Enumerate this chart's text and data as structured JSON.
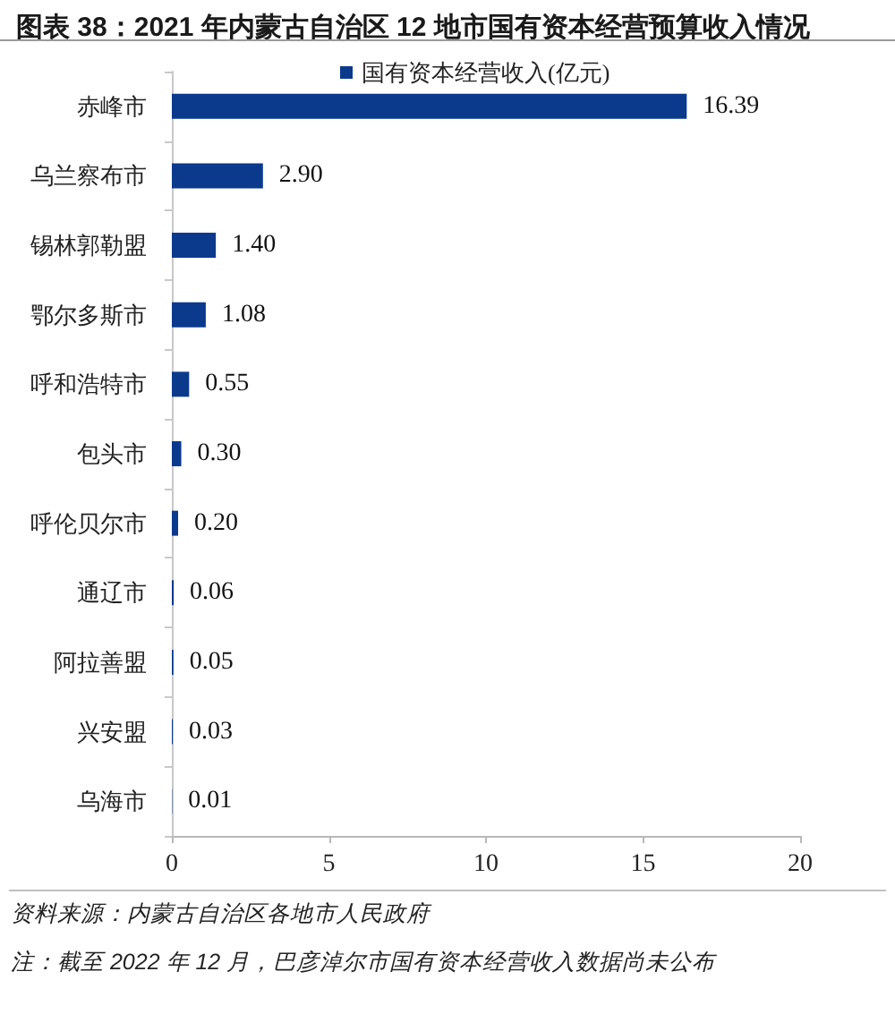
{
  "chart_data": {
    "type": "bar",
    "orientation": "horizontal",
    "title": "图表 38：2021 年内蒙古自治区 12 地市国有资本经营预算收入情况",
    "categories": [
      "赤峰市",
      "乌兰察布市",
      "锡林郭勒盟",
      "鄂尔多斯市",
      "呼和浩特市",
      "包头市",
      "呼伦贝尔市",
      "通辽市",
      "阿拉善盟",
      "兴安盟",
      "乌海市"
    ],
    "series": [
      {
        "name": "国有资本经营收入(亿元)",
        "color": "#0b3a8c",
        "values": [
          16.39,
          2.9,
          1.4,
          1.08,
          0.55,
          0.3,
          0.2,
          0.06,
          0.05,
          0.03,
          0.01
        ],
        "value_labels": [
          "16.39",
          "2.90",
          "1.40",
          "1.08",
          "0.55",
          "0.30",
          "0.20",
          "0.06",
          "0.05",
          "0.03",
          "0.01"
        ]
      }
    ],
    "xlim": [
      0,
      20
    ],
    "xticks": [
      0,
      5,
      10,
      15,
      20
    ],
    "grid": false,
    "legend": "top",
    "annotations": [
      "资料来源：内蒙古自治区各地市人民政府",
      "注：截至 2022 年 12 月，巴彦淖尔市国有资本经营收入数据尚未公布"
    ]
  }
}
